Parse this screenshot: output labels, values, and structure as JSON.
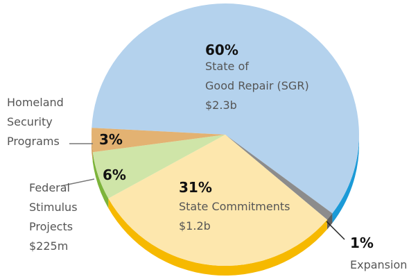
{
  "chart_data": {
    "type": "pie3d",
    "categories": [
      "State of\nGood Repair (SGR)",
      "State Commitments",
      "Federal\nStimulus\nProjects",
      "Homeland\nSecurity\nPrograms",
      "Expansion"
    ],
    "values": [
      60,
      31,
      6,
      3,
      1
    ],
    "value_labels": [
      "60%",
      "31%",
      "6%",
      "3%",
      "1%"
    ],
    "amounts": [
      "$2.3b",
      "$1.2b",
      "$225m",
      null,
      null
    ],
    "colors": [
      "#b4d2ed",
      "#fde7ad",
      "#cfe5a8",
      "#e3b272",
      "#8c8c8c"
    ],
    "side_colors": [
      "#1b9ad7",
      "#f6b900",
      "#7db43b",
      "#c98c3d",
      "#5f5f5f"
    ],
    "order": [
      0,
      4,
      1,
      2,
      3
    ]
  }
}
